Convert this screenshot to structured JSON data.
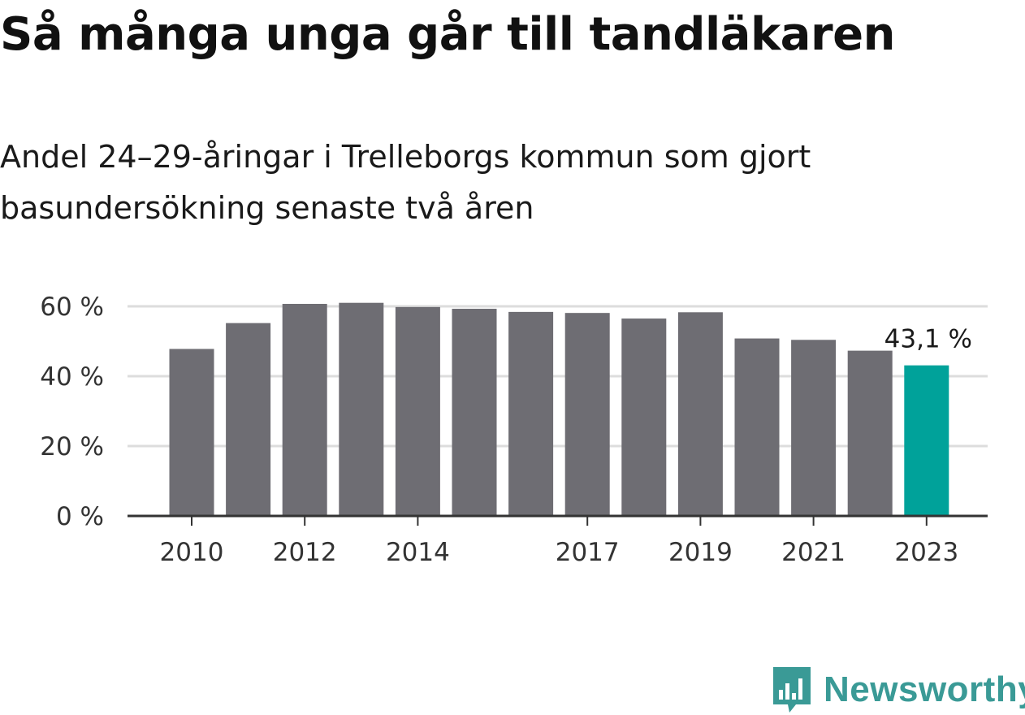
{
  "title": "Så många unga går till tandläkaren",
  "subtitle": "Andel 24–29-åringar i Trelleborgs kommun som gjort basundersökning senaste två åren",
  "brand": {
    "name": "Newsworthy",
    "icon": "newsworthy-logo-icon",
    "color": "#3a9a96"
  },
  "colors": {
    "bar": "#6e6d73",
    "highlight": "#00a29a",
    "grid": "#dddddd",
    "axis": "#333333"
  },
  "chart_data": {
    "type": "bar",
    "categories": [
      "2010",
      "2011",
      "2012",
      "2013",
      "2014",
      "2015",
      "2016",
      "2017",
      "2018",
      "2019",
      "2020",
      "2021",
      "2022",
      "2023"
    ],
    "x_tick_labels": [
      "2010",
      "",
      "2012",
      "",
      "2014",
      "",
      "",
      "2017",
      "",
      "2019",
      "",
      "2021",
      "",
      "2023"
    ],
    "values": [
      47.8,
      55.2,
      60.7,
      61.0,
      59.8,
      59.3,
      58.4,
      58.1,
      56.5,
      58.3,
      50.8,
      50.4,
      47.3,
      43.1
    ],
    "highlight_index": 13,
    "data_labels": [
      {
        "index": 13,
        "text": "43,1 %"
      }
    ],
    "y_ticks": [
      0,
      20,
      40,
      60
    ],
    "y_tick_labels": [
      "0 %",
      "20 %",
      "40 %",
      "60 %"
    ],
    "ylim": [
      0,
      60
    ],
    "grid": true,
    "xlabel": "",
    "ylabel": ""
  }
}
